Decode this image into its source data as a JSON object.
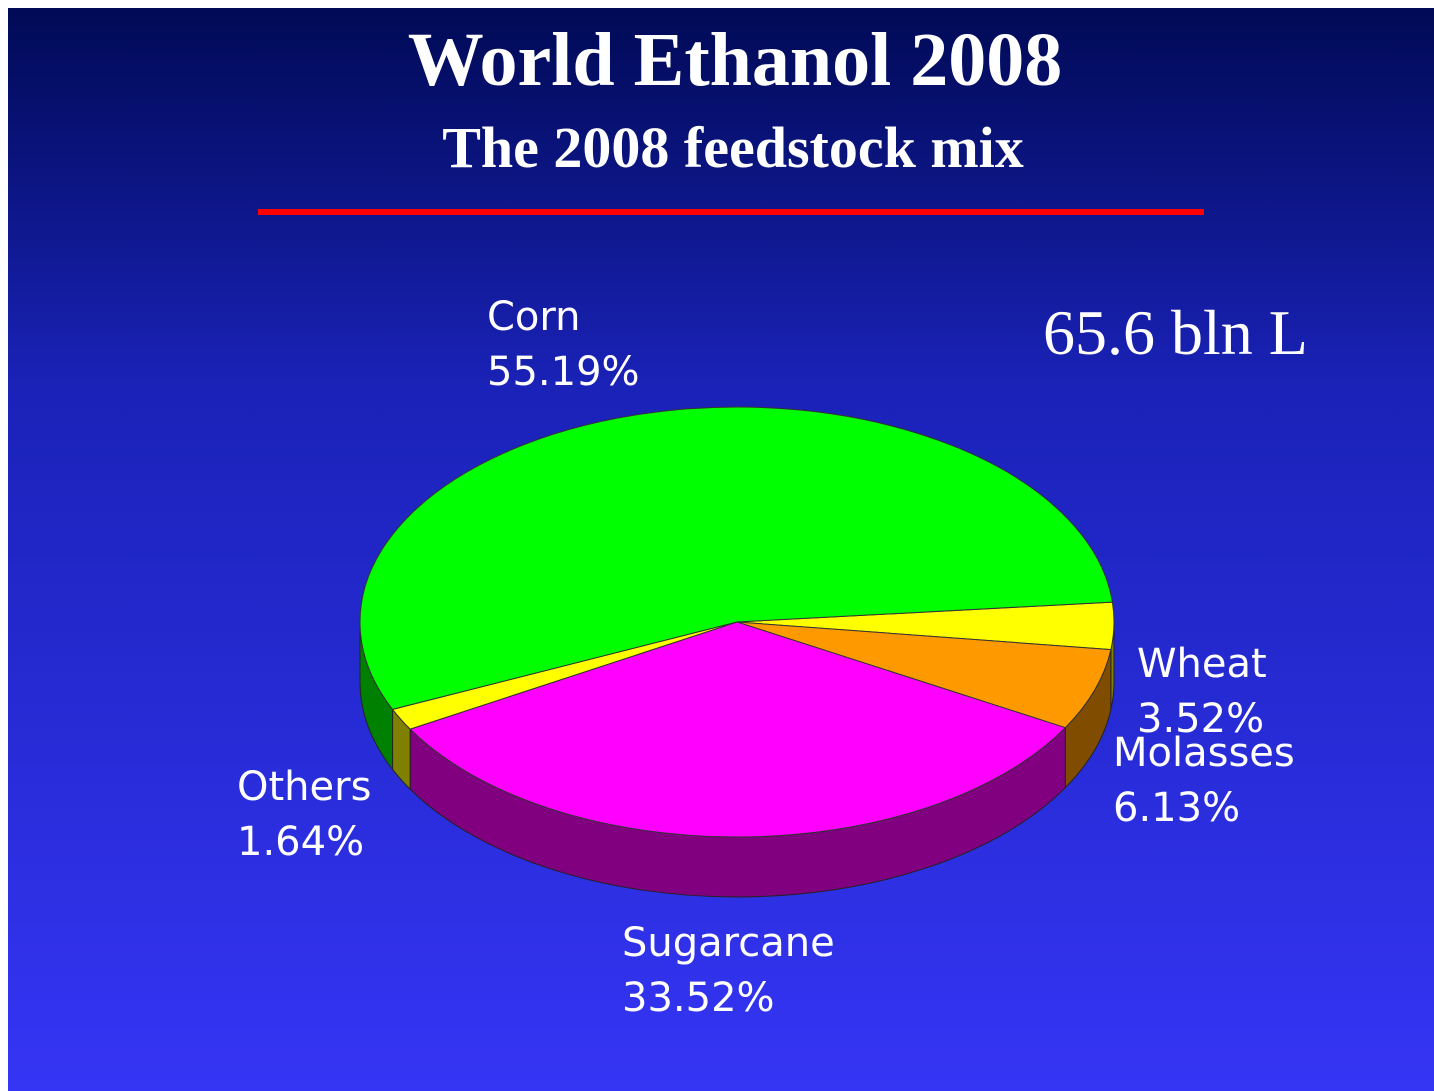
{
  "chart_data": {
    "type": "pie",
    "title": "World Ethanol 2008",
    "subtitle": "The 2008 feedstock mix",
    "annotation": "65.6 bln L",
    "categories": [
      "Wheat",
      "Molasses",
      "Sugarcane",
      "Others",
      "Corn"
    ],
    "values": [
      3.52,
      6.13,
      33.52,
      1.64,
      55.19
    ],
    "value_labels": [
      "3.52%",
      "6.13%",
      "33.52%",
      "1.64%",
      "55.19%"
    ],
    "colors": [
      "#ffff00",
      "#ff9900",
      "#ff00ff",
      "#ffff00",
      "#00ff00"
    ]
  }
}
